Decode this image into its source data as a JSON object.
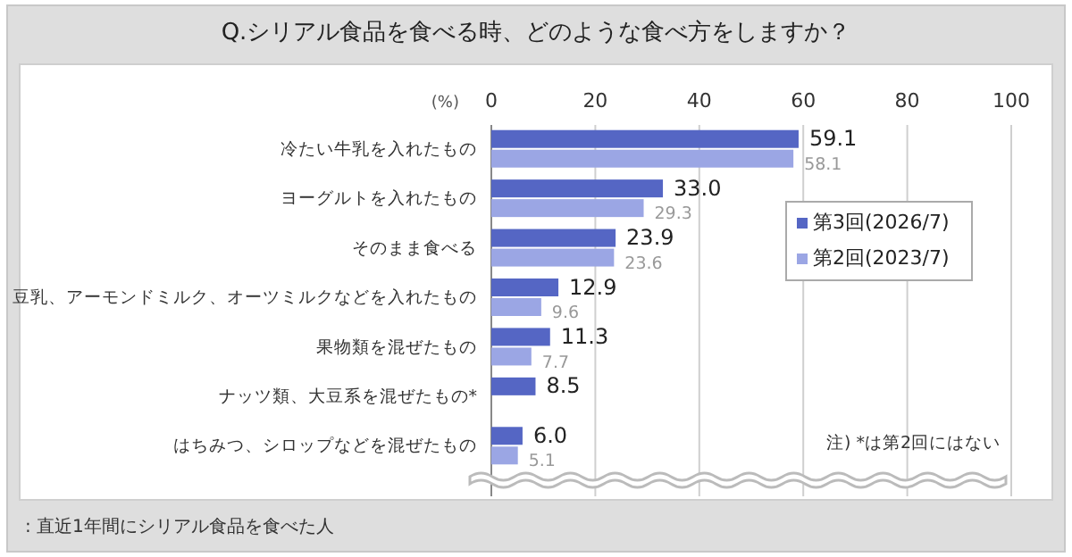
{
  "chart_data": {
    "type": "bar",
    "orientation": "horizontal",
    "title": "Q.シリアル食品を食べる時、どのような食べ方をしますか？",
    "xlabel": "(%)",
    "categories": [
      "冷たい牛乳を入れたもの",
      "ヨーグルトを入れたもの",
      "そのまま食べる",
      "豆乳、アーモンドミルク、オーツミルクなどを入れたもの",
      "果物類を混ぜたもの",
      "ナッツ類、大豆系を混ぜたもの*",
      "はちみつ、シロップなどを混ぜたもの"
    ],
    "series": [
      {
        "name": "第3回(2026/7)",
        "color": "#5566c4",
        "values": [
          59.1,
          33.0,
          23.9,
          12.9,
          11.3,
          8.5,
          6.0
        ],
        "value_labels": [
          "59.1",
          "33.0",
          "23.9",
          "12.9",
          "11.3",
          "8.5",
          "6.0"
        ]
      },
      {
        "name": "第2回(2023/7)",
        "color": "#9ba6e4",
        "values": [
          58.1,
          29.3,
          23.6,
          9.6,
          7.7,
          null,
          5.1
        ],
        "value_labels": [
          "58.1",
          "29.3",
          "23.6",
          "9.6",
          "7.7",
          null,
          "5.1"
        ]
      }
    ],
    "xlim": [
      0,
      100
    ],
    "xticks": [
      0,
      20,
      40,
      60,
      80,
      100
    ],
    "grid": "x",
    "legend": "right",
    "annotations": [
      "注) *は第2回にはない",
      ": 直近1年間にシリアル食品を食べた人"
    ]
  }
}
